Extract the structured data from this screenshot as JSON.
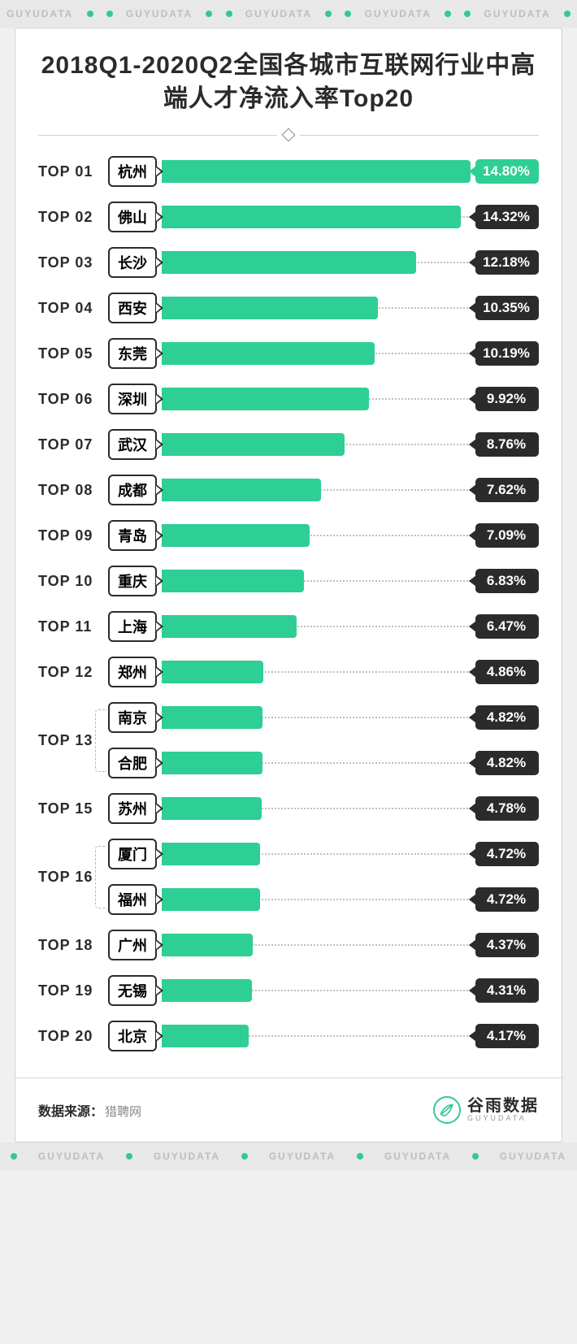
{
  "watermark_text": "GUYUDATA",
  "title": "2018Q1-2020Q2全国各城市互联网行业中高端人才净流入率Top20",
  "chart": {
    "type": "horizontal-bar-ranking",
    "max_value": 14.8,
    "bar_color": "#2ecf94",
    "bar_color_highlight": "#2ecf94",
    "value_tag_color_default": "#2b2b2b",
    "value_tag_color_highlight": "#2ecf94",
    "city_border_color": "#2b2b2b",
    "dotted_track_color": "#c0c0c0",
    "background_color": "#ffffff",
    "rank_prefix": "TOP",
    "rows": [
      {
        "rank": "01",
        "city": "杭州",
        "value": 14.8,
        "highlight": true
      },
      {
        "rank": "02",
        "city": "佛山",
        "value": 14.32
      },
      {
        "rank": "03",
        "city": "长沙",
        "value": 12.18
      },
      {
        "rank": "04",
        "city": "西安",
        "value": 10.35
      },
      {
        "rank": "05",
        "city": "东莞",
        "value": 10.19
      },
      {
        "rank": "06",
        "city": "深圳",
        "value": 9.92
      },
      {
        "rank": "07",
        "city": "武汉",
        "value": 8.76
      },
      {
        "rank": "08",
        "city": "成都",
        "value": 7.62
      },
      {
        "rank": "09",
        "city": "青岛",
        "value": 7.09
      },
      {
        "rank": "10",
        "city": "重庆",
        "value": 6.83
      },
      {
        "rank": "11",
        "city": "上海",
        "value": 6.47
      },
      {
        "rank": "12",
        "city": "郑州",
        "value": 4.86
      },
      {
        "rank": "13",
        "tie": [
          {
            "city": "南京",
            "value": 4.82
          },
          {
            "city": "合肥",
            "value": 4.82
          }
        ]
      },
      {
        "rank": "15",
        "city": "苏州",
        "value": 4.78
      },
      {
        "rank": "16",
        "tie": [
          {
            "city": "厦门",
            "value": 4.72
          },
          {
            "city": "福州",
            "value": 4.72
          }
        ]
      },
      {
        "rank": "18",
        "city": "广州",
        "value": 4.37
      },
      {
        "rank": "19",
        "city": "无锡",
        "value": 4.31
      },
      {
        "rank": "20",
        "city": "北京",
        "value": 4.17
      }
    ]
  },
  "footer": {
    "source_label": "数据来源：",
    "source_value": "猎聘网",
    "logo_cn": "谷雨数据",
    "logo_en": "GUYUDATA"
  }
}
